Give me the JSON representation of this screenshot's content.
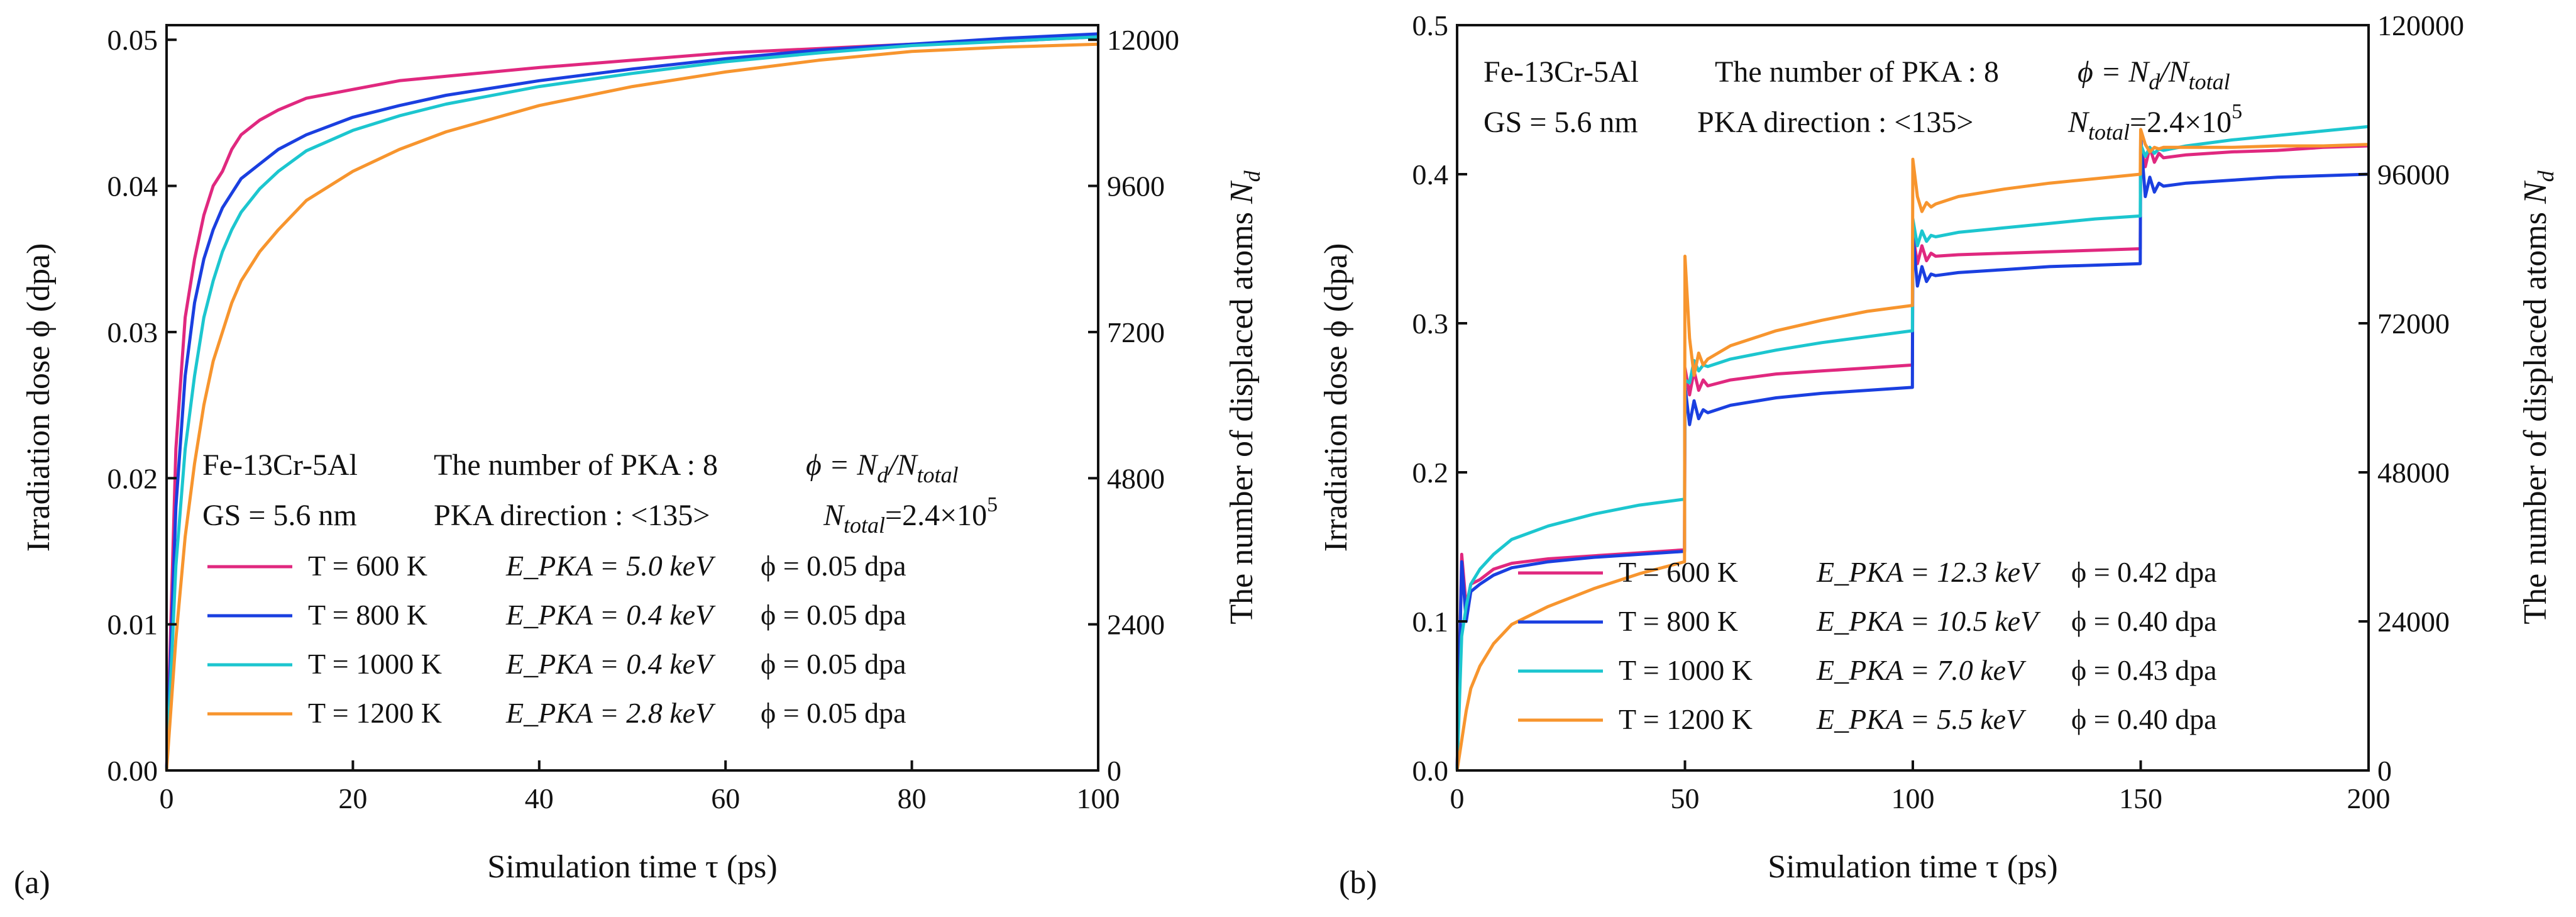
{
  "chart_data": [
    {
      "panel_label": "(a)",
      "type": "line",
      "xlabel": "Simulation time τ (ps)",
      "ylabel": "Irradiation dose ϕ (dpa)",
      "y2label": "The number of displaced atoms N_d",
      "xlim": [
        0,
        100
      ],
      "ylim": [
        0,
        0.051
      ],
      "y2lim": [
        0,
        12240
      ],
      "xticks": [
        "0",
        "20",
        "40",
        "60",
        "80",
        "100"
      ],
      "yticks": [
        "0.00",
        "0.01",
        "0.02",
        "0.03",
        "0.04",
        "0.05"
      ],
      "y2ticks": [
        "0",
        "2400",
        "4800",
        "7200",
        "9600",
        "12000"
      ],
      "annotation": {
        "material": "Fe-13Cr-5Al",
        "pka_number": "The number of PKA : 8",
        "phi_def": "ϕ = N_d/N_total",
        "gs": "GS = 5.6 nm",
        "pka_dir": "PKA direction : <135>",
        "ntotal": "N_total=2.4×10^5"
      },
      "series": [
        {
          "name": "T =  600 K",
          "epka": "E_PKA = 5.0 keV",
          "phi": "ϕ = 0.05 dpa",
          "color": "#e0287f",
          "x": [
            0,
            1,
            2,
            3,
            4,
            5,
            6,
            7,
            8,
            10,
            12,
            15,
            20,
            25,
            30,
            40,
            50,
            60,
            70,
            80,
            90,
            100
          ],
          "y": [
            0,
            0.022,
            0.031,
            0.035,
            0.038,
            0.04,
            0.041,
            0.0425,
            0.0435,
            0.0445,
            0.0452,
            0.046,
            0.0466,
            0.0472,
            0.0475,
            0.0481,
            0.0486,
            0.0491,
            0.0494,
            0.0497,
            0.0499,
            0.0502
          ]
        },
        {
          "name": "T =  800 K",
          "epka": "E_PKA = 0.4 keV",
          "phi": "ϕ = 0.05 dpa",
          "color": "#1a3fe0",
          "x": [
            0,
            1,
            2,
            3,
            4,
            5,
            6,
            7,
            8,
            10,
            12,
            15,
            20,
            25,
            30,
            40,
            50,
            60,
            70,
            80,
            90,
            100
          ],
          "y": [
            0,
            0.018,
            0.027,
            0.032,
            0.035,
            0.037,
            0.0385,
            0.0395,
            0.0405,
            0.0415,
            0.0425,
            0.0435,
            0.0447,
            0.0455,
            0.0462,
            0.0472,
            0.048,
            0.0487,
            0.0493,
            0.0497,
            0.0501,
            0.0504
          ]
        },
        {
          "name": "T = 1000 K",
          "epka": "E_PKA = 0.4 keV",
          "phi": "ϕ = 0.05 dpa",
          "color": "#1cc6cf",
          "x": [
            0,
            1,
            2,
            3,
            4,
            5,
            6,
            7,
            8,
            10,
            12,
            15,
            20,
            25,
            30,
            40,
            50,
            60,
            70,
            80,
            90,
            100
          ],
          "y": [
            0,
            0.014,
            0.022,
            0.027,
            0.031,
            0.0335,
            0.0355,
            0.037,
            0.0382,
            0.0398,
            0.041,
            0.0424,
            0.0438,
            0.0448,
            0.0456,
            0.0468,
            0.0477,
            0.0485,
            0.0491,
            0.0496,
            0.0499,
            0.0502
          ]
        },
        {
          "name": "T = 1200 K",
          "epka": "E_PKA = 2.8 keV",
          "phi": "ϕ = 0.05 dpa",
          "color": "#f7952e",
          "x": [
            0,
            1,
            2,
            3,
            4,
            5,
            6,
            7,
            8,
            10,
            12,
            15,
            20,
            25,
            30,
            40,
            50,
            60,
            70,
            80,
            90,
            100
          ],
          "y": [
            0,
            0.009,
            0.016,
            0.021,
            0.025,
            0.028,
            0.03,
            0.032,
            0.0335,
            0.0355,
            0.037,
            0.039,
            0.041,
            0.0425,
            0.0437,
            0.0455,
            0.0468,
            0.0478,
            0.0486,
            0.0492,
            0.0495,
            0.0497
          ]
        }
      ]
    },
    {
      "panel_label": "(b)",
      "type": "line",
      "xlabel": "Simulation time τ (ps)",
      "ylabel": "Irradiation dose ϕ (dpa)",
      "y2label": "The number of displaced atoms N_d",
      "xlim": [
        0,
        200
      ],
      "ylim": [
        0,
        0.5
      ],
      "y2lim": [
        0,
        120000
      ],
      "xticks": [
        "0",
        "50",
        "100",
        "150",
        "200"
      ],
      "yticks": [
        "0.0",
        "0.1",
        "0.2",
        "0.3",
        "0.4",
        "0.5"
      ],
      "y2ticks": [
        "0",
        "24000",
        "48000",
        "72000",
        "96000",
        "120000"
      ],
      "annotation": {
        "material": "Fe-13Cr-5Al",
        "pka_number": "The number of PKA : 8",
        "phi_def": "ϕ = N_d/N_total",
        "gs": "GS = 5.6 nm",
        "pka_dir": "PKA direction : <135>",
        "ntotal": "N_total=2.4×10^5"
      },
      "series": [
        {
          "name": "T =  600 K",
          "epka": "E_PKA = 12.3 keV",
          "phi": "ϕ = 0.42 dpa",
          "color": "#e0287f",
          "x": [
            0,
            1,
            2,
            3,
            5,
            8,
            12,
            20,
            30,
            40,
            49.9,
            50,
            51,
            52,
            53,
            54,
            55,
            60,
            70,
            80,
            90,
            99.9,
            100,
            101,
            102,
            103,
            104,
            105,
            110,
            120,
            130,
            140,
            149.9,
            150,
            151,
            152,
            153,
            154,
            155,
            160,
            170,
            180,
            190,
            200
          ],
          "y": [
            0,
            0.145,
            0.11,
            0.125,
            0.128,
            0.135,
            0.139,
            0.142,
            0.144,
            0.146,
            0.148,
            0.27,
            0.252,
            0.268,
            0.255,
            0.262,
            0.258,
            0.262,
            0.266,
            0.268,
            0.27,
            0.272,
            0.36,
            0.34,
            0.352,
            0.342,
            0.347,
            0.345,
            0.346,
            0.347,
            0.348,
            0.349,
            0.35,
            0.42,
            0.405,
            0.418,
            0.408,
            0.414,
            0.411,
            0.413,
            0.415,
            0.416,
            0.418,
            0.419
          ]
        },
        {
          "name": "T =  800 K",
          "epka": "E_PKA = 10.5 keV",
          "phi": "ϕ = 0.40 dpa",
          "color": "#1a3fe0",
          "x": [
            0,
            1,
            2,
            3,
            5,
            8,
            12,
            20,
            30,
            40,
            49.9,
            50,
            51,
            52,
            53,
            54,
            55,
            60,
            70,
            80,
            90,
            99.9,
            100,
            101,
            102,
            103,
            104,
            105,
            110,
            120,
            130,
            140,
            149.9,
            150,
            151,
            152,
            153,
            154,
            155,
            160,
            170,
            180,
            190,
            200
          ],
          "y": [
            0,
            0.14,
            0.1,
            0.12,
            0.125,
            0.131,
            0.136,
            0.14,
            0.143,
            0.145,
            0.147,
            0.258,
            0.232,
            0.248,
            0.236,
            0.242,
            0.24,
            0.245,
            0.25,
            0.253,
            0.255,
            0.257,
            0.36,
            0.325,
            0.338,
            0.328,
            0.333,
            0.332,
            0.334,
            0.336,
            0.338,
            0.339,
            0.34,
            0.425,
            0.385,
            0.398,
            0.388,
            0.394,
            0.392,
            0.394,
            0.396,
            0.398,
            0.399,
            0.4
          ]
        },
        {
          "name": "T = 1000 K",
          "epka": "E_PKA = 7.0 keV",
          "phi": "ϕ = 0.43 dpa",
          "color": "#1cc6cf",
          "x": [
            0,
            1,
            2,
            3,
            5,
            8,
            12,
            20,
            30,
            40,
            49.9,
            50,
            51,
            52,
            53,
            54,
            55,
            60,
            70,
            80,
            90,
            99.9,
            100,
            101,
            102,
            103,
            104,
            105,
            110,
            120,
            130,
            140,
            149.9,
            150,
            151,
            152,
            153,
            154,
            155,
            160,
            170,
            180,
            190,
            200
          ],
          "y": [
            0,
            0.09,
            0.11,
            0.125,
            0.135,
            0.145,
            0.155,
            0.164,
            0.172,
            0.178,
            0.182,
            0.262,
            0.26,
            0.275,
            0.268,
            0.272,
            0.271,
            0.276,
            0.282,
            0.287,
            0.291,
            0.295,
            0.37,
            0.352,
            0.362,
            0.355,
            0.359,
            0.358,
            0.361,
            0.364,
            0.367,
            0.37,
            0.372,
            0.42,
            0.412,
            0.418,
            0.414,
            0.417,
            0.416,
            0.419,
            0.423,
            0.426,
            0.429,
            0.432
          ]
        },
        {
          "name": "T = 1200 K",
          "epka": "E_PKA = 5.5 keV",
          "phi": "ϕ = 0.40 dpa",
          "color": "#f7952e",
          "x": [
            0,
            1,
            2,
            3,
            5,
            8,
            12,
            20,
            30,
            40,
            49.9,
            50,
            51,
            52,
            53,
            54,
            55,
            60,
            70,
            80,
            90,
            99.9,
            100,
            101,
            102,
            103,
            104,
            105,
            110,
            120,
            130,
            140,
            149.9,
            150,
            151,
            152,
            153,
            154,
            155,
            160,
            170,
            180,
            190,
            200
          ],
          "y": [
            0,
            0.02,
            0.04,
            0.055,
            0.07,
            0.085,
            0.098,
            0.11,
            0.122,
            0.132,
            0.14,
            0.345,
            0.29,
            0.265,
            0.28,
            0.272,
            0.276,
            0.285,
            0.295,
            0.302,
            0.308,
            0.312,
            0.41,
            0.385,
            0.375,
            0.381,
            0.378,
            0.38,
            0.385,
            0.39,
            0.394,
            0.397,
            0.4,
            0.43,
            0.42,
            0.415,
            0.418,
            0.417,
            0.418,
            0.418,
            0.418,
            0.419,
            0.419,
            0.42
          ]
        }
      ]
    }
  ]
}
